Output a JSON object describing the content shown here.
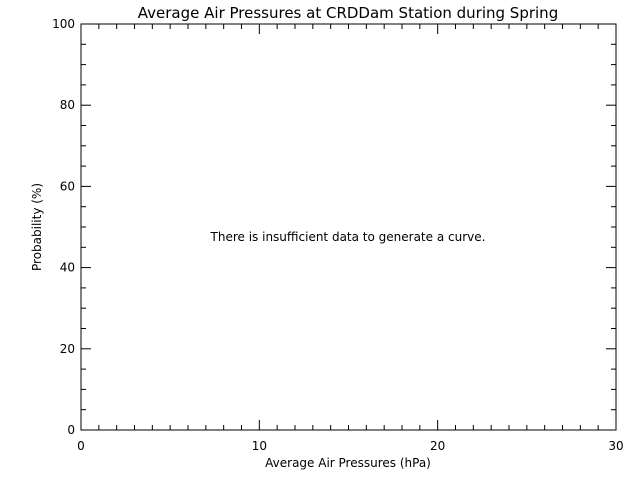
{
  "chart_data": {
    "type": "line",
    "title": "Average Air Pressures at CRDDam Station during Spring",
    "xlabel": "Average Air Pressures (hPa)",
    "ylabel": "Probability (%)",
    "xlim": [
      0,
      30
    ],
    "ylim": [
      0,
      100
    ],
    "x_ticks": [
      0,
      10,
      20,
      30
    ],
    "y_ticks": [
      0,
      20,
      40,
      60,
      80,
      100
    ],
    "x_minor_step": 1,
    "y_minor_step": 5,
    "grid": false,
    "series": [],
    "annotation": "There is insufficient data to generate a curve."
  }
}
